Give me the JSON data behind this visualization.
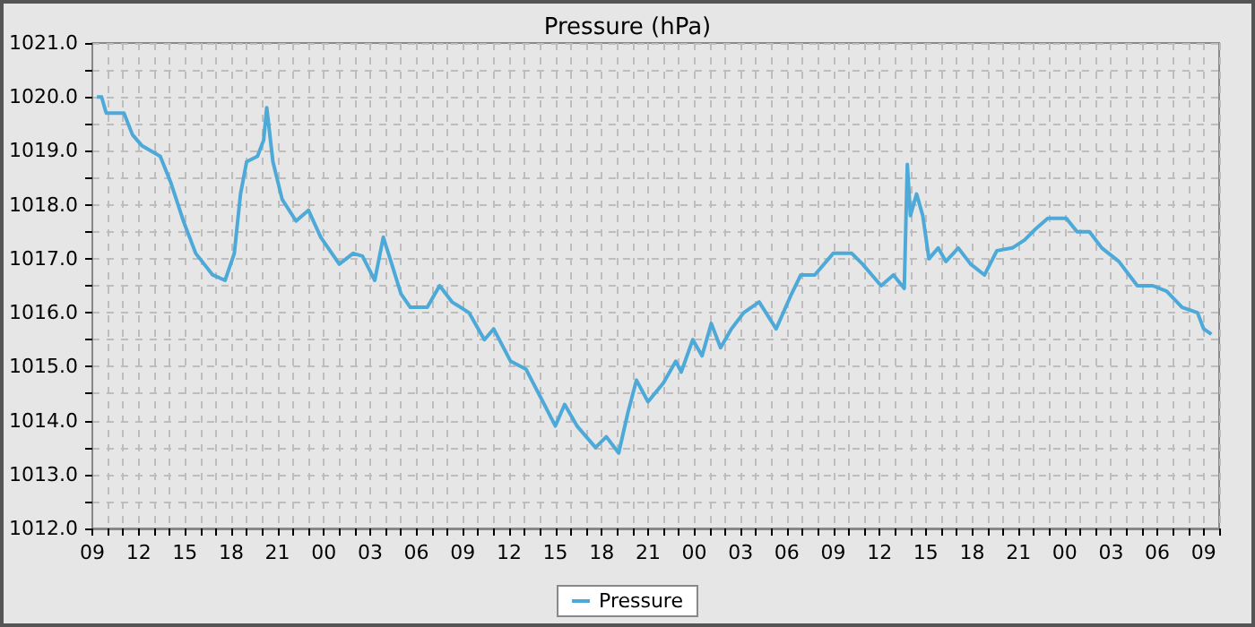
{
  "chart_data": {
    "type": "line",
    "title": "Pressure (hPa)",
    "x": [
      9.3,
      9.6,
      9.9,
      11.05,
      11.6,
      12.2,
      13.4,
      14.1,
      14.9,
      15.7,
      16.8,
      17.6,
      18.2,
      18.6,
      19.0,
      19.7,
      20.1,
      20.3,
      20.7,
      21.3,
      22.2,
      23.0,
      23.8,
      25.0,
      25.9,
      26.5,
      27.3,
      27.85,
      28.4,
      29.0,
      29.6,
      30.7,
      31.5,
      32.3,
      33.4,
      34.4,
      35.0,
      36.1,
      37.1,
      38.1,
      39.0,
      39.6,
      40.4,
      41.6,
      42.3,
      43.1,
      43.7,
      44.25,
      45.0,
      46.0,
      46.8,
      47.15,
      47.9,
      48.5,
      49.1,
      49.7,
      50.4,
      51.2,
      52.2,
      53.3,
      54.3,
      54.9,
      55.8,
      57.0,
      58.2,
      58.9,
      59.5,
      60.1,
      60.9,
      61.6,
      61.8,
      62.0,
      62.4,
      62.8,
      63.2,
      63.8,
      64.3,
      65.1,
      65.9,
      66.8,
      67.6,
      68.6,
      69.4,
      70.1,
      70.9,
      72.1,
      72.8,
      73.6,
      74.4,
      75.5,
      76.7,
      77.7,
      78.6,
      79.6,
      80.6,
      81.0,
      81.5
    ],
    "series": [
      {
        "name": "Pressure",
        "color": "#4da9d8",
        "values": [
          1020.0,
          1020.0,
          1019.7,
          1019.7,
          1019.3,
          1019.1,
          1018.9,
          1018.4,
          1017.7,
          1017.1,
          1016.7,
          1016.6,
          1017.1,
          1018.2,
          1018.8,
          1018.9,
          1019.2,
          1019.8,
          1018.8,
          1018.1,
          1017.7,
          1017.9,
          1017.4,
          1016.9,
          1017.1,
          1017.05,
          1016.6,
          1017.4,
          1016.9,
          1016.35,
          1016.1,
          1016.1,
          1016.5,
          1016.2,
          1016.0,
          1015.5,
          1015.7,
          1015.1,
          1014.95,
          1014.4,
          1013.9,
          1014.3,
          1013.9,
          1013.5,
          1013.7,
          1013.4,
          1014.15,
          1014.75,
          1014.35,
          1014.7,
          1015.1,
          1014.9,
          1015.5,
          1015.2,
          1015.8,
          1015.35,
          1015.7,
          1016.0,
          1016.2,
          1015.7,
          1016.35,
          1016.7,
          1016.7,
          1017.1,
          1017.1,
          1016.9,
          1016.7,
          1016.5,
          1016.7,
          1016.45,
          1018.75,
          1017.8,
          1018.2,
          1017.8,
          1017.0,
          1017.2,
          1016.95,
          1017.2,
          1016.9,
          1016.7,
          1017.15,
          1017.2,
          1017.35,
          1017.55,
          1017.75,
          1017.75,
          1017.5,
          1017.5,
          1017.2,
          1016.95,
          1016.5,
          1016.5,
          1016.4,
          1016.1,
          1016.0,
          1015.7,
          1015.6
        ]
      }
    ],
    "xlim": [
      9,
      82
    ],
    "xticks": [
      {
        "value": 9,
        "label": "09"
      },
      {
        "value": 10,
        "label": null
      },
      {
        "value": 11,
        "label": null
      },
      {
        "value": 12,
        "label": "12"
      },
      {
        "value": 13,
        "label": null
      },
      {
        "value": 14,
        "label": null
      },
      {
        "value": 15,
        "label": "15"
      },
      {
        "value": 16,
        "label": null
      },
      {
        "value": 17,
        "label": null
      },
      {
        "value": 18,
        "label": "18"
      },
      {
        "value": 19,
        "label": null
      },
      {
        "value": 20,
        "label": null
      },
      {
        "value": 21,
        "label": "21"
      },
      {
        "value": 22,
        "label": null
      },
      {
        "value": 23,
        "label": null
      },
      {
        "value": 24,
        "label": "00"
      },
      {
        "value": 25,
        "label": null
      },
      {
        "value": 26,
        "label": null
      },
      {
        "value": 27,
        "label": "03"
      },
      {
        "value": 28,
        "label": null
      },
      {
        "value": 29,
        "label": null
      },
      {
        "value": 30,
        "label": "06"
      },
      {
        "value": 31,
        "label": null
      },
      {
        "value": 32,
        "label": null
      },
      {
        "value": 33,
        "label": "09"
      },
      {
        "value": 34,
        "label": null
      },
      {
        "value": 35,
        "label": null
      },
      {
        "value": 36,
        "label": "12"
      },
      {
        "value": 37,
        "label": null
      },
      {
        "value": 38,
        "label": null
      },
      {
        "value": 39,
        "label": "15"
      },
      {
        "value": 40,
        "label": null
      },
      {
        "value": 41,
        "label": null
      },
      {
        "value": 42,
        "label": "18"
      },
      {
        "value": 43,
        "label": null
      },
      {
        "value": 44,
        "label": null
      },
      {
        "value": 45,
        "label": "21"
      },
      {
        "value": 46,
        "label": null
      },
      {
        "value": 47,
        "label": null
      },
      {
        "value": 48,
        "label": "00"
      },
      {
        "value": 49,
        "label": null
      },
      {
        "value": 50,
        "label": null
      },
      {
        "value": 51,
        "label": "03"
      },
      {
        "value": 52,
        "label": null
      },
      {
        "value": 53,
        "label": null
      },
      {
        "value": 54,
        "label": "06"
      },
      {
        "value": 55,
        "label": null
      },
      {
        "value": 56,
        "label": null
      },
      {
        "value": 57,
        "label": "09"
      },
      {
        "value": 58,
        "label": null
      },
      {
        "value": 59,
        "label": null
      },
      {
        "value": 60,
        "label": "12"
      },
      {
        "value": 61,
        "label": null
      },
      {
        "value": 62,
        "label": null
      },
      {
        "value": 63,
        "label": "15"
      },
      {
        "value": 64,
        "label": null
      },
      {
        "value": 65,
        "label": null
      },
      {
        "value": 66,
        "label": "18"
      },
      {
        "value": 67,
        "label": null
      },
      {
        "value": 68,
        "label": null
      },
      {
        "value": 69,
        "label": "21"
      },
      {
        "value": 70,
        "label": null
      },
      {
        "value": 71,
        "label": null
      },
      {
        "value": 72,
        "label": "00"
      },
      {
        "value": 73,
        "label": null
      },
      {
        "value": 74,
        "label": null
      },
      {
        "value": 75,
        "label": "03"
      },
      {
        "value": 76,
        "label": null
      },
      {
        "value": 77,
        "label": null
      },
      {
        "value": 78,
        "label": "06"
      },
      {
        "value": 79,
        "label": null
      },
      {
        "value": 80,
        "label": null
      },
      {
        "value": 81,
        "label": "09"
      },
      {
        "value": 82,
        "label": null
      }
    ],
    "ylim": [
      1012,
      1021
    ],
    "yticks": [
      {
        "value": 1012,
        "label": "1012.0"
      },
      {
        "value": 1012.5,
        "label": null
      },
      {
        "value": 1013,
        "label": "1013.0"
      },
      {
        "value": 1013.5,
        "label": null
      },
      {
        "value": 1014,
        "label": "1014.0"
      },
      {
        "value": 1014.5,
        "label": null
      },
      {
        "value": 1015,
        "label": "1015.0"
      },
      {
        "value": 1015.5,
        "label": null
      },
      {
        "value": 1016,
        "label": "1016.0"
      },
      {
        "value": 1016.5,
        "label": null
      },
      {
        "value": 1017,
        "label": "1017.0"
      },
      {
        "value": 1017.5,
        "label": null
      },
      {
        "value": 1018,
        "label": "1018.0"
      },
      {
        "value": 1018.5,
        "label": null
      },
      {
        "value": 1019,
        "label": "1019.0"
      },
      {
        "value": 1019.5,
        "label": null
      },
      {
        "value": 1020,
        "label": "1020.0"
      },
      {
        "value": 1020.5,
        "label": null
      },
      {
        "value": 1021,
        "label": "1021.0"
      }
    ],
    "grid": true,
    "legend": "bottom",
    "marker": "none",
    "line_style": "solid"
  }
}
